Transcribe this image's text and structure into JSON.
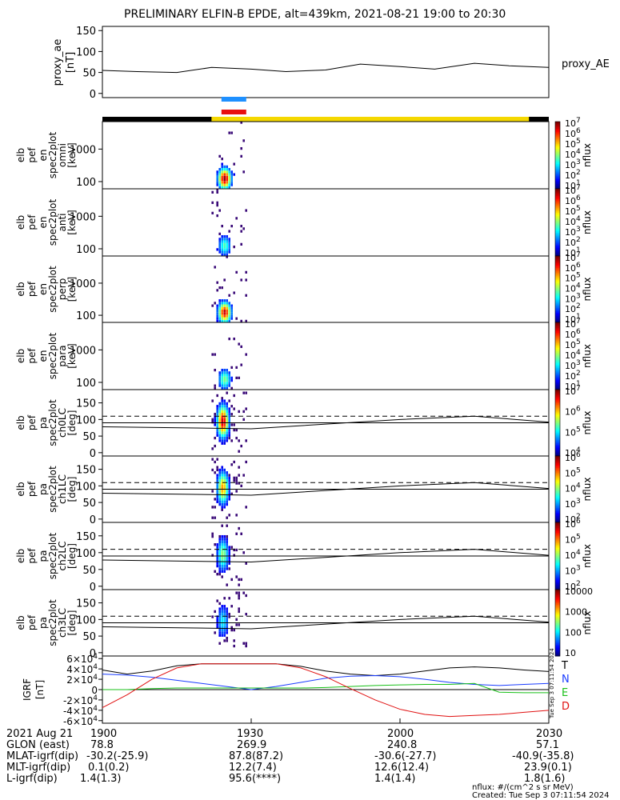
{
  "title": "PRELIMINARY ELFIN-B EPDE, alt=439km, 2021-08-21 19:00 to 20:30",
  "chart_data": [
    {
      "type": "line",
      "name": "proxy_ae",
      "ylabel_lines": [
        "proxy_ae",
        "[nT]"
      ],
      "ylim": [
        -10,
        160
      ],
      "yticks": [
        "0",
        "50",
        "100",
        "150"
      ],
      "legend": "proxy_AE",
      "x_minutes": [
        0,
        7,
        15,
        22,
        30,
        37,
        45,
        52,
        60,
        67,
        75,
        82,
        90
      ],
      "values": [
        55,
        52,
        50,
        62,
        58,
        52,
        56,
        70,
        64,
        58,
        72,
        66,
        62
      ]
    },
    {
      "type": "bar",
      "name": "status_bars",
      "blue_range_min": [
        24,
        29
      ],
      "red_range_min": [
        24,
        29
      ],
      "yellow_range_min": [
        22,
        86
      ]
    },
    {
      "type": "heatmap",
      "name": "spec_omni",
      "ylabel_lines": [
        "elb",
        "pef",
        "en",
        "spec2plot",
        "omni",
        "[keV]"
      ],
      "yticks": [
        "100",
        "1000"
      ],
      "ylim_keV": [
        60,
        7000
      ],
      "colorbar_labels": [
        "10^1",
        "10^2",
        "10^3",
        "10^4",
        "10^5",
        "10^6",
        "10^7"
      ],
      "colorbar_title": "nflux",
      "active_range_min": [
        22,
        29
      ],
      "intensity": 0.9
    },
    {
      "type": "heatmap",
      "name": "spec_anti",
      "ylabel_lines": [
        "elb",
        "pef",
        "en",
        "spec2plot",
        "anti",
        "[keV]"
      ],
      "yticks": [
        "100",
        "1000"
      ],
      "ylim_keV": [
        60,
        7000
      ],
      "colorbar_labels": [
        "10^1",
        "10^2",
        "10^3",
        "10^4",
        "10^5",
        "10^6",
        "10^7"
      ],
      "colorbar_title": "nflux",
      "active_range_min": [
        22,
        29
      ],
      "intensity": 0.4
    },
    {
      "type": "heatmap",
      "name": "spec_perp",
      "ylabel_lines": [
        "elb",
        "pef",
        "en",
        "spec2plot",
        "perp",
        "[keV]"
      ],
      "yticks": [
        "100",
        "1000"
      ],
      "ylim_keV": [
        60,
        7000
      ],
      "colorbar_labels": [
        "10^1",
        "10^2",
        "10^3",
        "10^4",
        "10^5",
        "10^6",
        "10^7"
      ],
      "colorbar_title": "nflux",
      "active_range_min": [
        22,
        29
      ],
      "intensity": 0.85
    },
    {
      "type": "heatmap",
      "name": "spec_para",
      "ylabel_lines": [
        "elb",
        "pef",
        "en",
        "spec2plot",
        "para",
        "[keV]"
      ],
      "yticks": [
        "100",
        "1000"
      ],
      "ylim_keV": [
        60,
        7000
      ],
      "colorbar_labels": [
        "10^1",
        "10^2",
        "10^3",
        "10^4",
        "10^5",
        "10^6",
        "10^7"
      ],
      "colorbar_title": "nflux",
      "active_range_min": [
        22,
        29
      ],
      "intensity": 0.45
    },
    {
      "type": "heatmap",
      "name": "pa_ch0",
      "ylabel_lines": [
        "elb",
        "pef",
        "pa",
        "spec2plot",
        "ch0LC",
        "[deg]"
      ],
      "yticks": [
        "0",
        "50",
        "100",
        "150"
      ],
      "ylim": [
        -10,
        190
      ],
      "colorbar_labels": [
        "10^4",
        "10^5",
        "10^6",
        "10^7"
      ],
      "colorbar_title": "nflux",
      "active_range_min": [
        22,
        29
      ],
      "intensity": 0.9,
      "lc_solid_x": [
        0,
        30,
        60,
        75,
        90
      ],
      "lc_solid_y": [
        78,
        72,
        100,
        110,
        92
      ],
      "lc_dashed_value": 110,
      "lc_flat_value": 90
    },
    {
      "type": "heatmap",
      "name": "pa_ch1",
      "ylabel_lines": [
        "elb",
        "pef",
        "pa",
        "spec2plot",
        "ch1LC",
        "[deg]"
      ],
      "yticks": [
        "0",
        "50",
        "100",
        "150"
      ],
      "ylim": [
        -10,
        190
      ],
      "colorbar_labels": [
        "10^2",
        "10^3",
        "10^4",
        "10^5",
        "10^6"
      ],
      "colorbar_title": "nflux",
      "active_range_min": [
        22,
        29
      ],
      "intensity": 0.7,
      "lc_solid_x": [
        0,
        30,
        60,
        75,
        90
      ],
      "lc_solid_y": [
        78,
        72,
        100,
        110,
        92
      ],
      "lc_dashed_value": 110,
      "lc_flat_value": 90
    },
    {
      "type": "heatmap",
      "name": "pa_ch2",
      "ylabel_lines": [
        "elb",
        "pef",
        "pa",
        "spec2plot",
        "ch2LC",
        "[deg]"
      ],
      "yticks": [
        "0",
        "50",
        "100",
        "150"
      ],
      "ylim": [
        -10,
        190
      ],
      "colorbar_labels": [
        "10^2",
        "10^3",
        "10^4",
        "10^5",
        "10^6"
      ],
      "colorbar_title": "nflux",
      "active_range_min": [
        22,
        29
      ],
      "intensity": 0.5,
      "lc_solid_x": [
        0,
        30,
        60,
        75,
        90
      ],
      "lc_solid_y": [
        78,
        72,
        100,
        110,
        92
      ],
      "lc_dashed_value": 110,
      "lc_flat_value": 90
    },
    {
      "type": "heatmap",
      "name": "pa_ch3",
      "ylabel_lines": [
        "elb",
        "pef",
        "pa",
        "spec2plot",
        "ch3LC",
        "[deg]"
      ],
      "yticks": [
        "0",
        "50",
        "100",
        "150"
      ],
      "ylim": [
        -10,
        190
      ],
      "colorbar_labels": [
        "10",
        "100",
        "1000",
        "10000"
      ],
      "colorbar_title": "nflux",
      "active_range_min": [
        22,
        29
      ],
      "intensity": 0.35,
      "lc_solid_x": [
        0,
        30,
        60,
        75,
        90
      ],
      "lc_solid_y": [
        78,
        72,
        100,
        110,
        92
      ],
      "lc_dashed_value": 110,
      "lc_flat_value": 90
    },
    {
      "type": "line",
      "name": "igrf",
      "ylabel_lines": [
        "IGRF",
        "[nT]"
      ],
      "ylim": [
        -65000,
        65000
      ],
      "yticks": [
        "6x10^4",
        "4x10^4",
        "2x10^4",
        "0",
        "-2x10^4",
        "-4x10^4",
        "-6x10^4"
      ],
      "x_minutes": [
        0,
        5,
        10,
        15,
        20,
        25,
        30,
        35,
        40,
        45,
        50,
        55,
        60,
        65,
        70,
        75,
        80,
        85,
        90
      ],
      "series": [
        {
          "name": "T",
          "color": "#000000",
          "values": [
            38000,
            30000,
            36000,
            46000,
            50000,
            50000,
            50000,
            50000,
            45000,
            36000,
            30000,
            27000,
            30000,
            36000,
            42000,
            44000,
            42000,
            38000,
            35000
          ]
        },
        {
          "name": "N",
          "color": "#1a3cff",
          "values": [
            30000,
            28000,
            24000,
            18000,
            12000,
            6000,
            0,
            6000,
            14000,
            22000,
            26000,
            27000,
            25000,
            20000,
            14000,
            10000,
            8000,
            10000,
            12000
          ]
        },
        {
          "name": "E",
          "color": "#18c018",
          "values": [
            0,
            0,
            2000,
            3000,
            3000,
            3000,
            3000,
            3000,
            3000,
            4000,
            6000,
            8000,
            9000,
            10000,
            10000,
            12000,
            -5000,
            -6000,
            -6000
          ]
        },
        {
          "name": "D",
          "color": "#e01010",
          "values": [
            -35000,
            -10000,
            20000,
            42000,
            50000,
            50000,
            50000,
            50000,
            42000,
            25000,
            2000,
            -20000,
            -38000,
            -48000,
            -52000,
            -50000,
            -48000,
            -44000,
            -40000
          ]
        }
      ],
      "legend": [
        "T",
        "N",
        "E",
        "D"
      ]
    }
  ],
  "xaxis": {
    "ticks": [
      "1900",
      "1930",
      "2000",
      "2030"
    ],
    "ticks_min": [
      0,
      30,
      60,
      90
    ]
  },
  "footer": {
    "rows": [
      {
        "label": "2021 Aug 21",
        "values": [
          "1900",
          "1930",
          "2000",
          "2030"
        ]
      },
      {
        "label": "GLON (east)",
        "values": [
          "78.8",
          "269.9",
          "240.8",
          "57.1"
        ]
      },
      {
        "label": "MLAT-igrf(dip)",
        "values": [
          "-30.2(-25.9)",
          "87.8(87.2)",
          "-30.6(-27.7)",
          "-40.9(-35.8)"
        ]
      },
      {
        "label": "MLT-igrf(dip)",
        "values": [
          "0.1(0.2)",
          "12.2(7.4)",
          "12.6(12.4)",
          "23.9(0.1)"
        ]
      },
      {
        "label": "L-igrf(dip)",
        "values": [
          "1.4(1.3)",
          "95.6(****)",
          "1.4(1.4)",
          "1.8(1.6)"
        ]
      }
    ]
  },
  "nflux_units": "nflux: #/(cm^2 s sr MeV)",
  "created": "Created: Tue Sep  3 07:11:54 2024",
  "side_stamp": "Tue Sep  3 07:11:54 2024"
}
